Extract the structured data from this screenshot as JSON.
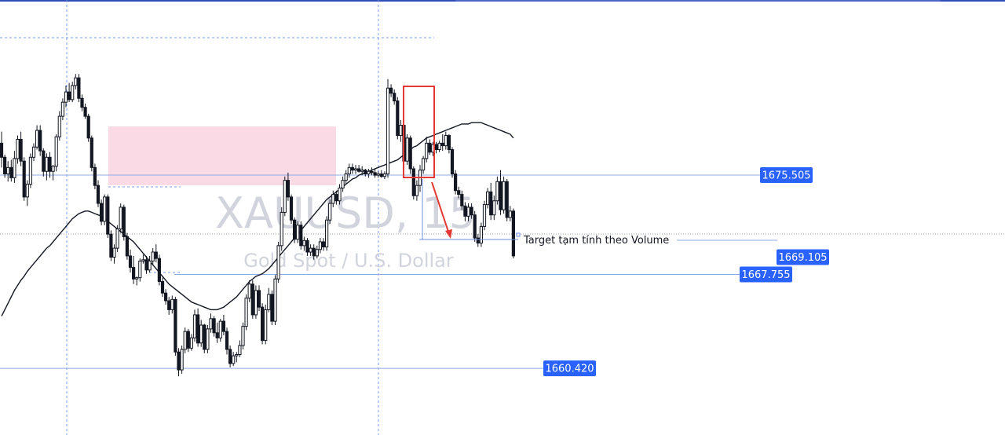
{
  "watermark": {
    "symbol": "XAUUSD, 15",
    "description": "Gold Spot / U.S. Dollar"
  },
  "colors": {
    "background": "#ffffff",
    "candle": "#131722",
    "ma_line": "#131722",
    "level_line": "#8fa9e6",
    "label_bg": "#2962ff",
    "label_text": "#ffffff",
    "grid": "#7a9ce8",
    "zone_fill": "#f9d6e1",
    "highlight_box": "#e53935",
    "arrow": "#e53935",
    "watermark": "#d1d4dc",
    "top_bar": "#2e4bb8"
  },
  "price_levels": [
    {
      "name": "level-1675",
      "label": "1675.505",
      "price": 1675.505
    },
    {
      "name": "level-1669",
      "label": "1669.105",
      "price": 1669.105
    },
    {
      "name": "level-1667",
      "label": "1667.755",
      "price": 1667.755
    },
    {
      "name": "level-1660",
      "label": "1660.420",
      "price": 1660.42
    }
  ],
  "annotation": {
    "text": "Target tạm tính theo Volume",
    "price": 1669.105
  },
  "chart_data": {
    "type": "candlestick",
    "symbol": "XAUUSD",
    "timeframe": "15",
    "ylim": [
      1656.75,
      1685.5
    ],
    "grid": "dashed vertical lines",
    "candles": [
      [
        1678.0,
        1678.9,
        1676.1,
        1676.9
      ],
      [
        1676.9,
        1677.1,
        1675.3,
        1675.6
      ],
      [
        1675.6,
        1676.6,
        1675.0,
        1676.1
      ],
      [
        1676.1,
        1676.7,
        1675.0,
        1675.3
      ],
      [
        1675.3,
        1677.4,
        1674.9,
        1676.8
      ],
      [
        1676.8,
        1678.6,
        1676.4,
        1678.3
      ],
      [
        1678.3,
        1678.9,
        1676.2,
        1676.6
      ],
      [
        1676.6,
        1676.9,
        1673.5,
        1673.8
      ],
      [
        1673.8,
        1675.1,
        1673.1,
        1674.8
      ],
      [
        1674.8,
        1677.2,
        1674.5,
        1676.9
      ],
      [
        1676.9,
        1678.0,
        1676.6,
        1677.7
      ],
      [
        1677.7,
        1679.4,
        1677.5,
        1679.0
      ],
      [
        1679.0,
        1679.4,
        1677.0,
        1677.4
      ],
      [
        1677.4,
        1677.6,
        1675.4,
        1675.8
      ],
      [
        1675.8,
        1677.2,
        1675.1,
        1676.9
      ],
      [
        1676.9,
        1677.3,
        1675.3,
        1675.8
      ],
      [
        1675.8,
        1676.3,
        1675.1,
        1676.2
      ],
      [
        1676.2,
        1678.7,
        1675.8,
        1678.5
      ],
      [
        1678.5,
        1680.5,
        1678.2,
        1680.1
      ],
      [
        1680.1,
        1681.5,
        1679.8,
        1681.2
      ],
      [
        1681.2,
        1682.5,
        1680.8,
        1682.0
      ],
      [
        1682.0,
        1682.7,
        1681.2,
        1681.4
      ],
      [
        1681.4,
        1682.8,
        1681.2,
        1682.5
      ],
      [
        1682.5,
        1683.4,
        1682.2,
        1683.1
      ],
      [
        1683.1,
        1683.4,
        1681.2,
        1681.5
      ],
      [
        1681.5,
        1681.8,
        1680.5,
        1680.8
      ],
      [
        1680.8,
        1681.1,
        1679.9,
        1680.1
      ],
      [
        1680.1,
        1680.3,
        1678.1,
        1678.4
      ],
      [
        1678.4,
        1678.6,
        1675.8,
        1676.1
      ],
      [
        1676.1,
        1676.4,
        1674.4,
        1674.7
      ],
      [
        1674.7,
        1675.1,
        1673.0,
        1673.3
      ],
      [
        1673.3,
        1673.6,
        1671.6,
        1671.9
      ],
      [
        1671.9,
        1674.0,
        1671.6,
        1673.8
      ],
      [
        1673.8,
        1674.0,
        1670.6,
        1670.9
      ],
      [
        1670.9,
        1671.2,
        1668.8,
        1669.1
      ],
      [
        1669.1,
        1670.1,
        1668.6,
        1669.8
      ],
      [
        1669.8,
        1671.6,
        1669.5,
        1671.3
      ],
      [
        1671.3,
        1673.3,
        1671.0,
        1673.0
      ],
      [
        1673.0,
        1673.2,
        1670.4,
        1670.7
      ],
      [
        1670.7,
        1671.0,
        1668.9,
        1669.2
      ],
      [
        1669.2,
        1669.7,
        1667.9,
        1668.3
      ],
      [
        1668.3,
        1669.2,
        1667.0,
        1667.4
      ],
      [
        1667.4,
        1667.6,
        1666.9,
        1667.5
      ],
      [
        1667.5,
        1669.0,
        1667.2,
        1668.8
      ],
      [
        1668.8,
        1669.3,
        1668.6,
        1668.9
      ],
      [
        1668.9,
        1669.2,
        1667.8,
        1668.1
      ],
      [
        1668.1,
        1669.2,
        1667.9,
        1668.8
      ],
      [
        1668.8,
        1669.8,
        1668.5,
        1669.5
      ],
      [
        1669.5,
        1670.1,
        1668.7,
        1669.0
      ],
      [
        1669.0,
        1669.3,
        1666.9,
        1667.2
      ],
      [
        1667.2,
        1667.5,
        1666.0,
        1666.3
      ],
      [
        1666.3,
        1666.6,
        1665.4,
        1665.7
      ],
      [
        1665.7,
        1666.0,
        1664.6,
        1665.0
      ],
      [
        1665.0,
        1666.1,
        1664.7,
        1665.8
      ],
      [
        1665.8,
        1666.0,
        1661.4,
        1661.7
      ],
      [
        1661.7,
        1662.0,
        1659.8,
        1660.3
      ],
      [
        1660.3,
        1662.2,
        1660.0,
        1661.9
      ],
      [
        1661.9,
        1663.6,
        1661.6,
        1663.3
      ],
      [
        1663.3,
        1663.5,
        1661.7,
        1662.0
      ],
      [
        1662.0,
        1663.1,
        1661.8,
        1662.8
      ],
      [
        1662.8,
        1665.0,
        1662.5,
        1664.6
      ],
      [
        1664.6,
        1665.1,
        1662.1,
        1662.4
      ],
      [
        1662.4,
        1664.2,
        1662.1,
        1663.8
      ],
      [
        1663.8,
        1663.9,
        1661.6,
        1661.9
      ],
      [
        1661.9,
        1663.8,
        1661.6,
        1663.5
      ],
      [
        1663.5,
        1664.7,
        1663.2,
        1664.3
      ],
      [
        1664.3,
        1664.5,
        1662.9,
        1663.2
      ],
      [
        1663.2,
        1664.0,
        1662.4,
        1662.8
      ],
      [
        1662.8,
        1664.3,
        1662.5,
        1664.1
      ],
      [
        1664.1,
        1664.6,
        1663.0,
        1663.3
      ],
      [
        1663.3,
        1663.6,
        1661.5,
        1661.9
      ],
      [
        1661.9,
        1662.2,
        1660.5,
        1660.8
      ],
      [
        1660.8,
        1661.7,
        1660.6,
        1661.4
      ],
      [
        1661.4,
        1661.7,
        1660.9,
        1661.5
      ],
      [
        1661.5,
        1662.6,
        1661.3,
        1662.2
      ],
      [
        1662.2,
        1664.0,
        1661.9,
        1663.7
      ],
      [
        1663.7,
        1666.2,
        1663.4,
        1665.9
      ],
      [
        1665.9,
        1667.3,
        1665.6,
        1667.0
      ],
      [
        1667.0,
        1667.3,
        1664.3,
        1664.6
      ],
      [
        1664.6,
        1666.9,
        1664.3,
        1666.5
      ],
      [
        1666.5,
        1666.9,
        1664.9,
        1665.2
      ],
      [
        1665.2,
        1665.5,
        1662.3,
        1662.6
      ],
      [
        1662.6,
        1665.4,
        1662.3,
        1665.0
      ],
      [
        1665.0,
        1666.7,
        1664.8,
        1666.2
      ],
      [
        1666.2,
        1666.5,
        1663.8,
        1664.1
      ],
      [
        1664.1,
        1667.7,
        1663.8,
        1667.4
      ],
      [
        1667.4,
        1670.3,
        1667.1,
        1670.0
      ],
      [
        1670.0,
        1673.0,
        1669.6,
        1672.6
      ],
      [
        1672.6,
        1675.4,
        1672.3,
        1675.1
      ],
      [
        1675.1,
        1675.7,
        1673.5,
        1673.8
      ],
      [
        1673.8,
        1674.0,
        1671.7,
        1672.0
      ],
      [
        1672.0,
        1672.2,
        1670.2,
        1670.5
      ],
      [
        1670.5,
        1671.9,
        1670.2,
        1671.6
      ],
      [
        1671.6,
        1671.9,
        1669.7,
        1670.0
      ],
      [
        1670.0,
        1670.7,
        1669.6,
        1670.4
      ],
      [
        1670.4,
        1670.6,
        1669.2,
        1669.5
      ],
      [
        1669.5,
        1670.1,
        1669.2,
        1669.8
      ],
      [
        1669.8,
        1670.1,
        1668.9,
        1669.2
      ],
      [
        1669.2,
        1670.0,
        1669.0,
        1669.7
      ],
      [
        1669.7,
        1670.6,
        1669.4,
        1670.3
      ],
      [
        1670.3,
        1670.6,
        1669.6,
        1669.9
      ],
      [
        1669.9,
        1672.3,
        1669.6,
        1672.0
      ],
      [
        1672.0,
        1673.6,
        1671.7,
        1673.3
      ],
      [
        1673.3,
        1674.3,
        1673.0,
        1674.0
      ],
      [
        1674.0,
        1674.3,
        1673.2,
        1673.5
      ],
      [
        1673.5,
        1674.8,
        1673.2,
        1674.5
      ],
      [
        1674.5,
        1675.4,
        1674.2,
        1675.1
      ],
      [
        1675.1,
        1675.9,
        1674.8,
        1675.6
      ],
      [
        1675.6,
        1676.4,
        1675.3,
        1676.1
      ],
      [
        1676.1,
        1676.4,
        1675.6,
        1675.9
      ],
      [
        1675.9,
        1676.3,
        1675.6,
        1676.0
      ],
      [
        1676.0,
        1676.3,
        1675.7,
        1675.8
      ],
      [
        1675.8,
        1676.2,
        1675.5,
        1675.9
      ],
      [
        1675.9,
        1676.0,
        1675.4,
        1675.6
      ],
      [
        1675.6,
        1676.0,
        1675.3,
        1675.8
      ],
      [
        1675.8,
        1676.1,
        1675.5,
        1675.7
      ],
      [
        1675.7,
        1676.0,
        1675.3,
        1675.5
      ],
      [
        1675.5,
        1675.8,
        1675.3,
        1675.6
      ],
      [
        1675.6,
        1675.9,
        1675.3,
        1675.4
      ],
      [
        1675.4,
        1675.8,
        1675.2,
        1675.6
      ],
      [
        1675.6,
        1683.0,
        1675.3,
        1682.3
      ],
      [
        1682.3,
        1682.6,
        1681.6,
        1681.9
      ],
      [
        1681.9,
        1682.2,
        1681.0,
        1681.3
      ],
      [
        1681.3,
        1681.6,
        1678.3,
        1678.6
      ],
      [
        1678.6,
        1679.8,
        1678.1,
        1679.4
      ],
      [
        1679.4,
        1679.6,
        1676.2,
        1676.6
      ],
      [
        1676.6,
        1678.7,
        1676.3,
        1678.4
      ],
      [
        1678.4,
        1678.6,
        1675.6,
        1676.0
      ],
      [
        1676.0,
        1676.2,
        1673.6,
        1673.9
      ],
      [
        1673.9,
        1675.1,
        1673.5,
        1674.7
      ],
      [
        1674.7,
        1676.3,
        1674.2,
        1675.9
      ],
      [
        1675.9,
        1677.0,
        1675.6,
        1676.8
      ],
      [
        1676.8,
        1678.5,
        1676.5,
        1678.0
      ],
      [
        1678.0,
        1678.3,
        1677.1,
        1677.3
      ],
      [
        1677.3,
        1678.1,
        1677.0,
        1677.9
      ],
      [
        1677.9,
        1678.1,
        1677.2,
        1677.5
      ],
      [
        1677.5,
        1678.2,
        1677.3,
        1678.0
      ],
      [
        1678.0,
        1678.7,
        1677.4,
        1677.8
      ],
      [
        1677.8,
        1678.9,
        1677.5,
        1678.6
      ],
      [
        1678.6,
        1678.7,
        1677.2,
        1677.5
      ],
      [
        1677.5,
        1677.7,
        1675.3,
        1675.6
      ],
      [
        1675.6,
        1675.9,
        1674.0,
        1674.3
      ],
      [
        1674.3,
        1674.6,
        1673.7,
        1674.0
      ],
      [
        1674.0,
        1674.3,
        1672.8,
        1673.1
      ],
      [
        1673.1,
        1673.4,
        1671.9,
        1672.3
      ],
      [
        1672.3,
        1673.3,
        1671.9,
        1673.0
      ],
      [
        1673.0,
        1673.3,
        1672.1,
        1672.4
      ],
      [
        1672.4,
        1672.7,
        1670.3,
        1670.6
      ],
      [
        1670.6,
        1670.9,
        1669.9,
        1670.2
      ],
      [
        1670.2,
        1671.8,
        1669.9,
        1671.5
      ],
      [
        1671.5,
        1673.5,
        1671.2,
        1673.2
      ],
      [
        1673.2,
        1674.5,
        1672.9,
        1674.2
      ],
      [
        1674.2,
        1674.9,
        1672.0,
        1672.4
      ],
      [
        1672.4,
        1673.9,
        1672.0,
        1673.5
      ],
      [
        1673.5,
        1675.4,
        1673.2,
        1675.0
      ],
      [
        1675.0,
        1675.9,
        1672.4,
        1672.8
      ],
      [
        1672.8,
        1675.4,
        1672.5,
        1675.0
      ],
      [
        1675.0,
        1675.2,
        1671.9,
        1672.2
      ],
      [
        1672.2,
        1673.1,
        1671.9,
        1672.7
      ],
      [
        1672.7,
        1672.9,
        1669.0,
        1669.2
      ]
    ],
    "moving_average": [
      1664.5,
      1665.0,
      1665.5,
      1666.0,
      1666.5,
      1666.9,
      1667.3,
      1667.6,
      1668.0,
      1668.3,
      1668.6,
      1668.9,
      1669.2,
      1669.5,
      1669.8,
      1670.0,
      1670.3,
      1670.6,
      1670.9,
      1671.2,
      1671.5,
      1671.8,
      1672.1,
      1672.3,
      1672.5,
      1672.6,
      1672.7,
      1672.7,
      1672.6,
      1672.5,
      1672.4,
      1672.3,
      1672.1,
      1671.9,
      1671.7,
      1671.5,
      1671.3,
      1671.1,
      1670.9,
      1670.7,
      1670.5,
      1670.3,
      1670.0,
      1669.7,
      1669.4,
      1669.1,
      1668.8,
      1668.5,
      1668.2,
      1667.9,
      1667.6,
      1667.3,
      1667.0,
      1666.8,
      1666.6,
      1666.4,
      1666.2,
      1666.0,
      1665.8,
      1665.6,
      1665.5,
      1665.4,
      1665.3,
      1665.2,
      1665.1,
      1665.0,
      1665.0,
      1665.0,
      1665.1,
      1665.2,
      1665.4,
      1665.6,
      1665.8,
      1666.0,
      1666.3,
      1666.6,
      1666.9,
      1667.2,
      1667.4,
      1667.6,
      1667.7,
      1667.8,
      1668.0,
      1668.2,
      1668.5,
      1668.8,
      1669.1,
      1669.4,
      1669.7,
      1670.0,
      1670.3,
      1670.6,
      1670.9,
      1671.2,
      1671.5,
      1671.8,
      1672.1,
      1672.4,
      1672.7,
      1673.0,
      1673.3,
      1673.6,
      1673.8,
      1674.0,
      1674.2,
      1674.4,
      1674.6,
      1674.8,
      1675.0,
      1675.2,
      1675.3,
      1675.5,
      1675.6,
      1675.7,
      1675.8,
      1675.9,
      1676.0,
      1676.1,
      1676.2,
      1676.3,
      1676.4,
      1676.5,
      1676.6,
      1676.7,
      1676.9,
      1677.1,
      1677.3,
      1677.5,
      1677.7,
      1677.8,
      1678.0,
      1678.2,
      1678.4,
      1678.5,
      1678.6,
      1678.7,
      1678.8,
      1678.9,
      1679.0,
      1679.1,
      1679.2,
      1679.3,
      1679.4,
      1679.5,
      1679.5,
      1679.5,
      1679.6,
      1679.6,
      1679.6,
      1679.6,
      1679.5,
      1679.4,
      1679.3,
      1679.2,
      1679.1,
      1679.0,
      1678.9,
      1678.8,
      1678.7,
      1678.4
    ]
  }
}
